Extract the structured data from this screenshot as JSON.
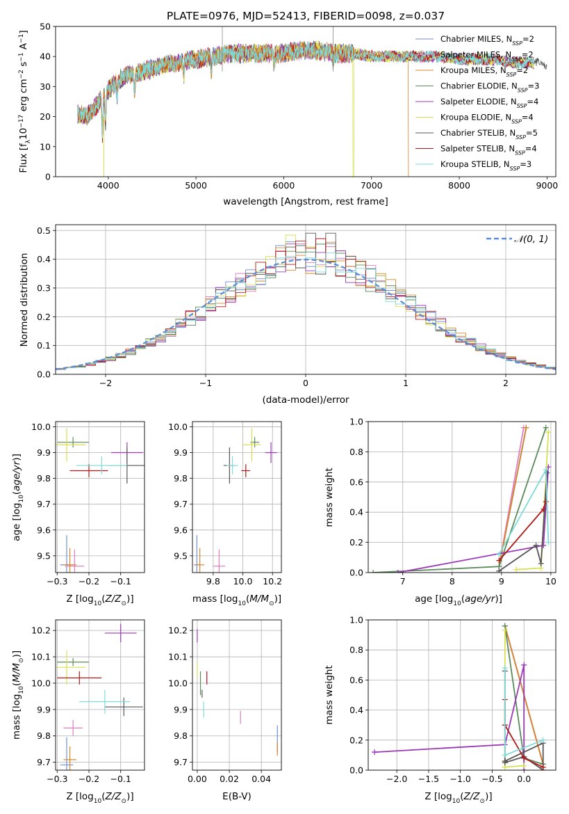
{
  "title": "PLATE=0976, MJD=52413, FIBERID=0098, z=0.037",
  "colors": [
    "#6c8ed6",
    "#e07fc0",
    "#d6842a",
    "#5a8a5a",
    "#9b36b8",
    "#d8e050",
    "#555555",
    "#b01818",
    "#7fdada"
  ],
  "legend": [
    "Chabrier MILES, N_SSP=2",
    "Salpeter MILES, N_SSP=2",
    "Kroupa MILES, N_SSP=2",
    "Chabrier ELODIE, N_SSP=3",
    "Salpeter ELODIE, N_SSP=4",
    "Kroupa ELODIE, N_SSP=4",
    "Chabrier STELIB, N_SSP=5",
    "Salpeter STELIB, N_SSP=4",
    "Kroupa STELIB, N_SSP=3"
  ],
  "legend_display": [
    {
      "main": "Chabrier MILES, N",
      "sub": "SSP",
      "tail": "=2"
    },
    {
      "main": "Salpeter MILES, N",
      "sub": "SSP",
      "tail": "=2"
    },
    {
      "main": "Kroupa MILES, N",
      "sub": "SSP",
      "tail": "=2"
    },
    {
      "main": "Chabrier ELODIE, N",
      "sub": "SSP",
      "tail": "=3"
    },
    {
      "main": "Salpeter ELODIE, N",
      "sub": "SSP",
      "tail": "=4"
    },
    {
      "main": "Kroupa ELODIE, N",
      "sub": "SSP",
      "tail": "=4"
    },
    {
      "main": "Chabrier STELIB, N",
      "sub": "SSP",
      "tail": "=5"
    },
    {
      "main": "Salpeter STELIB, N",
      "sub": "SSP",
      "tail": "=4"
    },
    {
      "main": "Kroupa STELIB, N",
      "sub": "SSP",
      "tail": "=3"
    }
  ],
  "labels": {
    "spec_x": "wavelength [Angstrom, rest frame]",
    "spec_y": "Flux [f_λ 10^-17 erg cm^-2 s^-1 A^-1]",
    "hist_x": "(data-model)/error",
    "hist_y": "Normed distribution",
    "hist_legend": "N(0,1)",
    "age_axis": "age  [log10(age/yr)]",
    "Z_axis": "Z [log10(Z/Z⊙)]",
    "mass_axis": "mass [log10(M/M⊙)]",
    "ebv_axis": "E(B-V)",
    "weight_axis": "mass weight"
  },
  "chart_data": [
    {
      "type": "line",
      "title": "PLATE=0976, MJD=52413, FIBERID=0098, z=0.037",
      "xlabel": "wavelength [Angstrom, rest frame]",
      "ylabel": "Flux [f_λ 10^-17 erg cm^-2 s^-1 A^-1]",
      "xlim": [
        3400,
        9100
      ],
      "ylim": [
        0,
        50
      ],
      "xticks": [
        4000,
        5000,
        6000,
        7000,
        8000,
        9000
      ],
      "yticks": [
        0,
        10,
        20,
        30,
        40,
        50
      ],
      "continuum": {
        "x": [
          3650,
          3750,
          3850,
          3950,
          4100,
          4250,
          4400,
          4600,
          4800,
          5000,
          5200,
          5400,
          5600,
          5800,
          6000,
          6200,
          6400,
          6600,
          6800,
          7000,
          7200,
          7400,
          7600,
          7800,
          8000,
          8200,
          8400,
          8600,
          8800,
          8950
        ],
        "y": [
          21,
          20,
          23,
          27,
          32,
          34,
          35,
          37,
          38,
          39,
          40,
          41,
          41,
          41,
          41,
          42,
          42,
          41,
          41,
          40,
          40,
          40,
          40,
          40,
          39,
          39,
          39,
          38,
          38,
          37
        ]
      },
      "features": {
        "abs_x": [
          3934,
          3969,
          4101,
          4300,
          4861,
          5175,
          5890,
          6563
        ],
        "abs_depth": [
          13,
          11,
          6,
          7,
          5,
          6,
          4,
          3
        ],
        "cutoffs": [
          {
            "series": 5,
            "x": 6790
          },
          {
            "series": 2,
            "x": 7420
          }
        ],
        "ends": [
          {
            "series": 8,
            "x": 8850
          },
          {
            "series": 6,
            "x": 9000
          }
        ],
        "spikes": [
          {
            "x": 6563,
            "y": 50
          },
          {
            "x": 5300,
            "y": 50
          }
        ]
      }
    },
    {
      "type": "line",
      "xlabel": "(data-model)/error",
      "ylabel": "Normed distribution",
      "xlim": [
        -2.5,
        2.5
      ],
      "ylim": [
        0,
        0.52
      ],
      "xticks": [
        -2,
        -1,
        0,
        1,
        2
      ],
      "yticks": [
        0,
        0.1,
        0.2,
        0.3,
        0.4,
        0.5
      ],
      "bin_width": 0.1,
      "series": [
        {
          "name": "N(0,1)",
          "mean": 0,
          "sigma": 1
        }
      ],
      "histogram_peak": 0.5
    },
    {
      "type": "scatter",
      "xlabel": "Z [log10(Z/Z⊙)]",
      "ylabel": "age  [log10(age/yr)]",
      "xlim": [
        -0.305,
        -0.025
      ],
      "ylim": [
        9.435,
        10.02
      ],
      "xticks": [
        -0.3,
        -0.2,
        -0.1
      ],
      "yticks": [
        9.5,
        9.6,
        9.7,
        9.8,
        9.9,
        10.0
      ],
      "points": [
        [
          -0.27,
          9.465,
          0.02,
          0.23
        ],
        [
          -0.245,
          9.46,
          0.03,
          0.13
        ],
        [
          -0.26,
          9.465,
          0.02,
          0.13
        ],
        [
          -0.25,
          9.94,
          0.05,
          0.04
        ],
        [
          -0.08,
          9.9,
          0.05,
          0.08
        ],
        [
          -0.27,
          9.93,
          0.06,
          0.13
        ],
        [
          -0.08,
          9.85,
          0.06,
          0.14
        ],
        [
          -0.2,
          9.83,
          0.06,
          0.05
        ],
        [
          -0.16,
          9.85,
          0.08,
          0.07
        ]
      ]
    },
    {
      "type": "scatter",
      "xlabel": "mass [log10(M/M⊙)]",
      "ylabel": "",
      "xlim": [
        9.66,
        10.26
      ],
      "ylim": [
        9.435,
        10.02
      ],
      "xticks": [
        9.8,
        10.0,
        10.2
      ],
      "yticks": [
        9.5,
        9.6,
        9.7,
        9.8,
        9.9,
        10.0
      ],
      "points": [
        [
          9.69,
          9.465,
          0.02,
          0.23
        ],
        [
          9.84,
          9.46,
          0.04,
          0.13
        ],
        [
          9.71,
          9.465,
          0.03,
          0.13
        ],
        [
          10.08,
          9.94,
          0.03,
          0.04
        ],
        [
          10.19,
          9.9,
          0.04,
          0.08
        ],
        [
          10.06,
          9.93,
          0.06,
          0.13
        ],
        [
          9.91,
          9.85,
          0.04,
          0.14
        ],
        [
          10.02,
          9.83,
          0.03,
          0.05
        ],
        [
          9.93,
          9.85,
          0.04,
          0.07
        ]
      ]
    },
    {
      "type": "line",
      "xlabel": "age  [log10(age/yr)]",
      "ylabel": "mass weight",
      "xlim": [
        6.3,
        10.1
      ],
      "ylim": [
        0,
        1
      ],
      "xticks": [
        7,
        8,
        9,
        10
      ],
      "yticks": [
        0,
        0.2,
        0.4,
        0.6,
        0.8,
        1.0
      ],
      "series": [
        {
          "points": [
            [
              8.95,
              0.04
            ],
            [
              9.5,
              0.96
            ]
          ]
        },
        {
          "points": [
            [
              8.95,
              0.04
            ],
            [
              9.45,
              0.96
            ]
          ]
        },
        {
          "points": [
            [
              8.95,
              0.04
            ],
            [
              9.5,
              0.96
            ]
          ]
        },
        {
          "points": [
            [
              6.4,
              0.0
            ],
            [
              8.95,
              0.04
            ],
            [
              9.9,
              0.96
            ]
          ]
        },
        {
          "points": [
            [
              6.9,
              0.0
            ],
            [
              9.85,
              0.18
            ],
            [
              9.95,
              0.7
            ]
          ]
        },
        {
          "points": [
            [
              9.3,
              0.02
            ],
            [
              9.8,
              0.03
            ],
            [
              9.95,
              0.93
            ]
          ]
        },
        {
          "points": [
            [
              8.95,
              0.01
            ],
            [
              9.7,
              0.18
            ],
            [
              9.8,
              0.06
            ],
            [
              9.92,
              0.66
            ]
          ]
        },
        {
          "points": [
            [
              8.95,
              0.08
            ],
            [
              9.85,
              0.42
            ],
            [
              9.9,
              0.47
            ]
          ]
        },
        {
          "points": [
            [
              8.95,
              0.12
            ],
            [
              9.9,
              0.68
            ],
            [
              9.95,
              0.2
            ]
          ]
        }
      ]
    },
    {
      "type": "scatter",
      "xlabel": "Z [log10(Z/Z⊙)]",
      "ylabel": "mass [log10(M/M⊙)]",
      "xlim": [
        -0.305,
        -0.025
      ],
      "ylim": [
        9.67,
        10.24
      ],
      "xticks": [
        -0.3,
        -0.2,
        -0.1
      ],
      "yticks": [
        9.7,
        9.8,
        9.9,
        10.0,
        10.1,
        10.2
      ],
      "points": [
        [
          -0.27,
          9.69,
          0.02,
          0.21
        ],
        [
          -0.25,
          9.83,
          0.03,
          0.06
        ],
        [
          -0.26,
          9.71,
          0.02,
          0.1
        ],
        [
          -0.25,
          10.08,
          0.05,
          0.03
        ],
        [
          -0.1,
          10.19,
          0.05,
          0.07
        ],
        [
          -0.27,
          10.06,
          0.06,
          0.13
        ],
        [
          -0.09,
          9.91,
          0.06,
          0.07
        ],
        [
          -0.23,
          10.02,
          0.07,
          0.05
        ],
        [
          -0.15,
          9.93,
          0.08,
          0.09
        ]
      ]
    },
    {
      "type": "scatter",
      "xlabel": "E(B-V)",
      "ylabel": "",
      "xlim": [
        -0.003,
        0.0525
      ],
      "ylim": [
        9.67,
        10.24
      ],
      "xticks": [
        0.0,
        0.02,
        0.04
      ],
      "yticks": [
        9.7,
        9.8,
        9.9,
        10.0,
        10.1,
        10.2
      ],
      "points": [
        [
          0.05,
          9.79,
          0.0,
          0.1
        ],
        [
          0.027,
          9.87,
          0.0,
          0.05
        ],
        [
          0.05,
          9.75,
          0.0,
          0.05
        ],
        [
          0.002,
          10.0,
          0.0,
          0.09
        ],
        [
          0.0,
          10.18,
          0.0,
          0.05
        ],
        [
          0.0,
          10.05,
          0.0,
          0.06
        ],
        [
          0.003,
          9.96,
          0.0,
          0.03
        ],
        [
          0.006,
          10.02,
          0.0,
          0.05
        ],
        [
          0.004,
          9.9,
          0.0,
          0.06
        ]
      ]
    },
    {
      "type": "line",
      "xlabel": "Z [log10(Z/Z⊙)]",
      "ylabel": "mass weight",
      "xlim": [
        -2.45,
        0.5
      ],
      "ylim": [
        0,
        1
      ],
      "xticks": [
        -2.0,
        -1.5,
        -1.0,
        -0.5,
        0.0
      ],
      "yticks": [
        0,
        0.2,
        0.4,
        0.6,
        0.8,
        1.0
      ],
      "series": [
        {
          "points": [
            [
              -0.3,
              0.96
            ],
            [
              0.3,
              0.04
            ]
          ]
        },
        {
          "points": [
            [
              -0.3,
              0.96
            ],
            [
              0.3,
              0.04
            ]
          ]
        },
        {
          "points": [
            [
              -0.3,
              0.96
            ],
            [
              0.3,
              0.04
            ]
          ]
        },
        {
          "points": [
            [
              -0.3,
              0.96
            ],
            [
              0.0,
              0.08
            ],
            [
              0.3,
              0.04
            ]
          ]
        },
        {
          "points": [
            [
              -2.35,
              0.12
            ],
            [
              -0.3,
              0.17
            ],
            [
              0.0,
              0.7
            ],
            [
              0.0,
              0.0
            ]
          ]
        },
        {
          "points": [
            [
              -0.3,
              0.93
            ],
            [
              -0.3,
              0.02
            ],
            [
              0.0,
              0.03
            ]
          ]
        },
        {
          "points": [
            [
              -0.3,
              0.66
            ],
            [
              -0.3,
              0.06
            ],
            [
              0.3,
              0.18
            ],
            [
              0.3,
              0.0
            ],
            [
              0.0,
              0.09
            ],
            [
              -0.3,
              0.05
            ]
          ]
        },
        {
          "points": [
            [
              -0.3,
              0.47
            ],
            [
              -0.3,
              0.3
            ],
            [
              0.0,
              0.08
            ],
            [
              0.3,
              0.02
            ]
          ]
        },
        {
          "points": [
            [
              -0.3,
              0.68
            ],
            [
              -0.3,
              0.1
            ],
            [
              0.3,
              0.2
            ]
          ]
        }
      ]
    }
  ]
}
